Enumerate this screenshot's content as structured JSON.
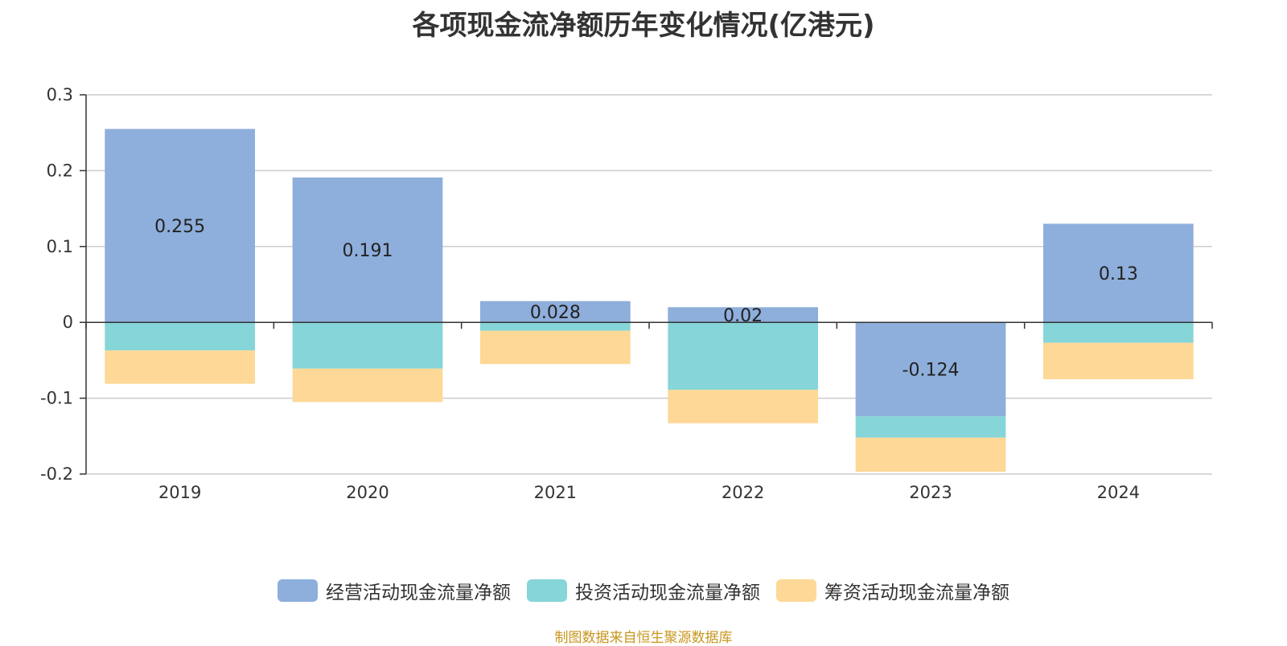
{
  "colors": {
    "operating": "#8eaedb",
    "investing": "#86d5d8",
    "financing": "#fdd896",
    "grid": "#cccccc",
    "axis": "#333333"
  },
  "chart_data": {
    "type": "bar",
    "stacked": true,
    "title": "各项现金流净额历年变化情况(亿港元)",
    "categories": [
      "2019",
      "2020",
      "2021",
      "2022",
      "2023",
      "2024"
    ],
    "series": [
      {
        "name": "经营活动现金流量净额",
        "values": [
          0.255,
          0.191,
          0.028,
          0.02,
          -0.124,
          0.13
        ],
        "labels": [
          "0.255",
          "0.191",
          "0.028",
          "0.02",
          "-0.124",
          "0.13"
        ]
      },
      {
        "name": "投资活动现金流量净额",
        "values": [
          -0.037,
          -0.061,
          -0.011,
          -0.089,
          -0.028,
          -0.027
        ]
      },
      {
        "name": "筹资活动现金流量净额",
        "values": [
          -0.044,
          -0.044,
          -0.044,
          -0.044,
          -0.045,
          -0.048
        ]
      }
    ],
    "y_ticks": [
      "0.3",
      "0.2",
      "0.1",
      "0",
      "-0.1",
      "-0.2"
    ],
    "ylim": [
      -0.2,
      0.3
    ],
    "grid": true,
    "legend_position": "bottom"
  },
  "source": "制图数据来自恒生聚源数据库"
}
